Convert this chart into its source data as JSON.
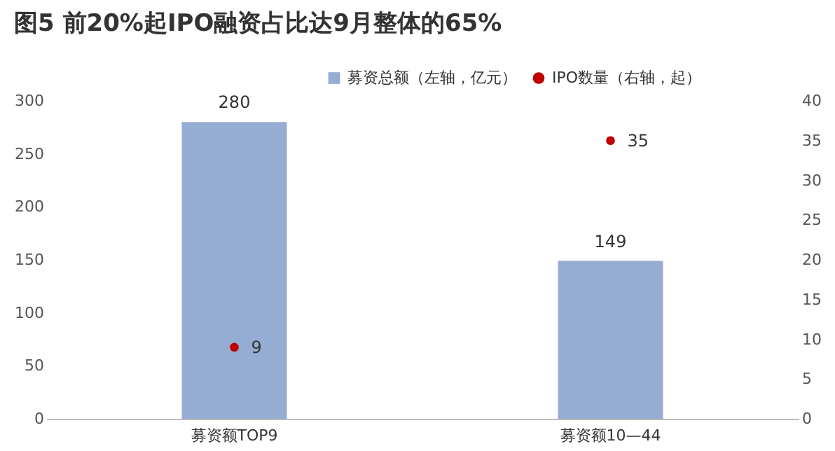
{
  "chart_data": {
    "type": "bar",
    "title": "图5 前20%起IPO融资占比达9月整体的65%",
    "categories": [
      "募资额TOP9",
      "募资额10—44"
    ],
    "series": [
      {
        "name": "募资总额（左轴，亿元）",
        "color": "#95acd3",
        "values": [
          280,
          149
        ]
      },
      {
        "name": "IPO数量（右轴，起）",
        "color": "#c00000",
        "values": [
          9,
          35
        ],
        "type": "scatter",
        "axis": "y2"
      }
    ],
    "ylim": [
      0,
      300
    ],
    "yticks": [
      0,
      50,
      100,
      150,
      200,
      250,
      300
    ],
    "y2lim": [
      0,
      40
    ],
    "y2ticks": [
      0,
      5,
      10,
      15,
      20,
      25,
      30,
      35,
      40
    ],
    "data_labels": true,
    "legend": "top right"
  }
}
